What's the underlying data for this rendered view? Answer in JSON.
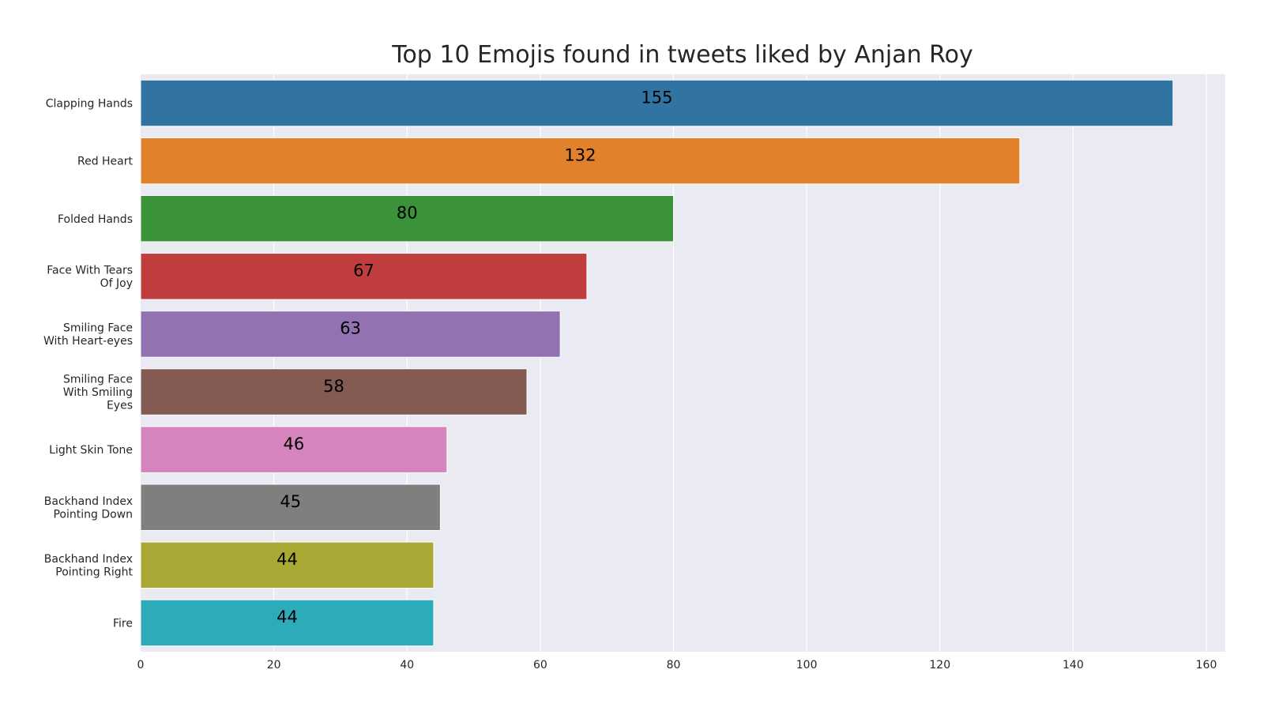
{
  "chart_data": {
    "type": "bar",
    "orientation": "horizontal",
    "title": "Top 10 Emojis found in tweets liked by Anjan Roy",
    "xlabel": "",
    "ylabel": "",
    "xlim": [
      0,
      163
    ],
    "xticks": [
      0,
      20,
      40,
      60,
      80,
      100,
      120,
      140,
      160
    ],
    "grid": true,
    "categories": [
      [
        "Clapping Hands"
      ],
      [
        "Red Heart"
      ],
      [
        "Folded Hands"
      ],
      [
        "Face With Tears",
        "Of Joy"
      ],
      [
        "Smiling Face",
        "With Heart-eyes"
      ],
      [
        "Smiling Face",
        "With Smiling",
        "Eyes"
      ],
      [
        "Light Skin Tone"
      ],
      [
        "Backhand Index",
        "Pointing Down"
      ],
      [
        "Backhand Index",
        "Pointing Right"
      ],
      [
        "Fire"
      ]
    ],
    "values": [
      155,
      132,
      80,
      67,
      63,
      58,
      46,
      45,
      44,
      44
    ],
    "colors": [
      "#3274a1",
      "#e1812c",
      "#3a923a",
      "#c03d3e",
      "#9372b2",
      "#845b53",
      "#d684bd",
      "#7f7f7f",
      "#a9aa35",
      "#2eabb8"
    ]
  }
}
